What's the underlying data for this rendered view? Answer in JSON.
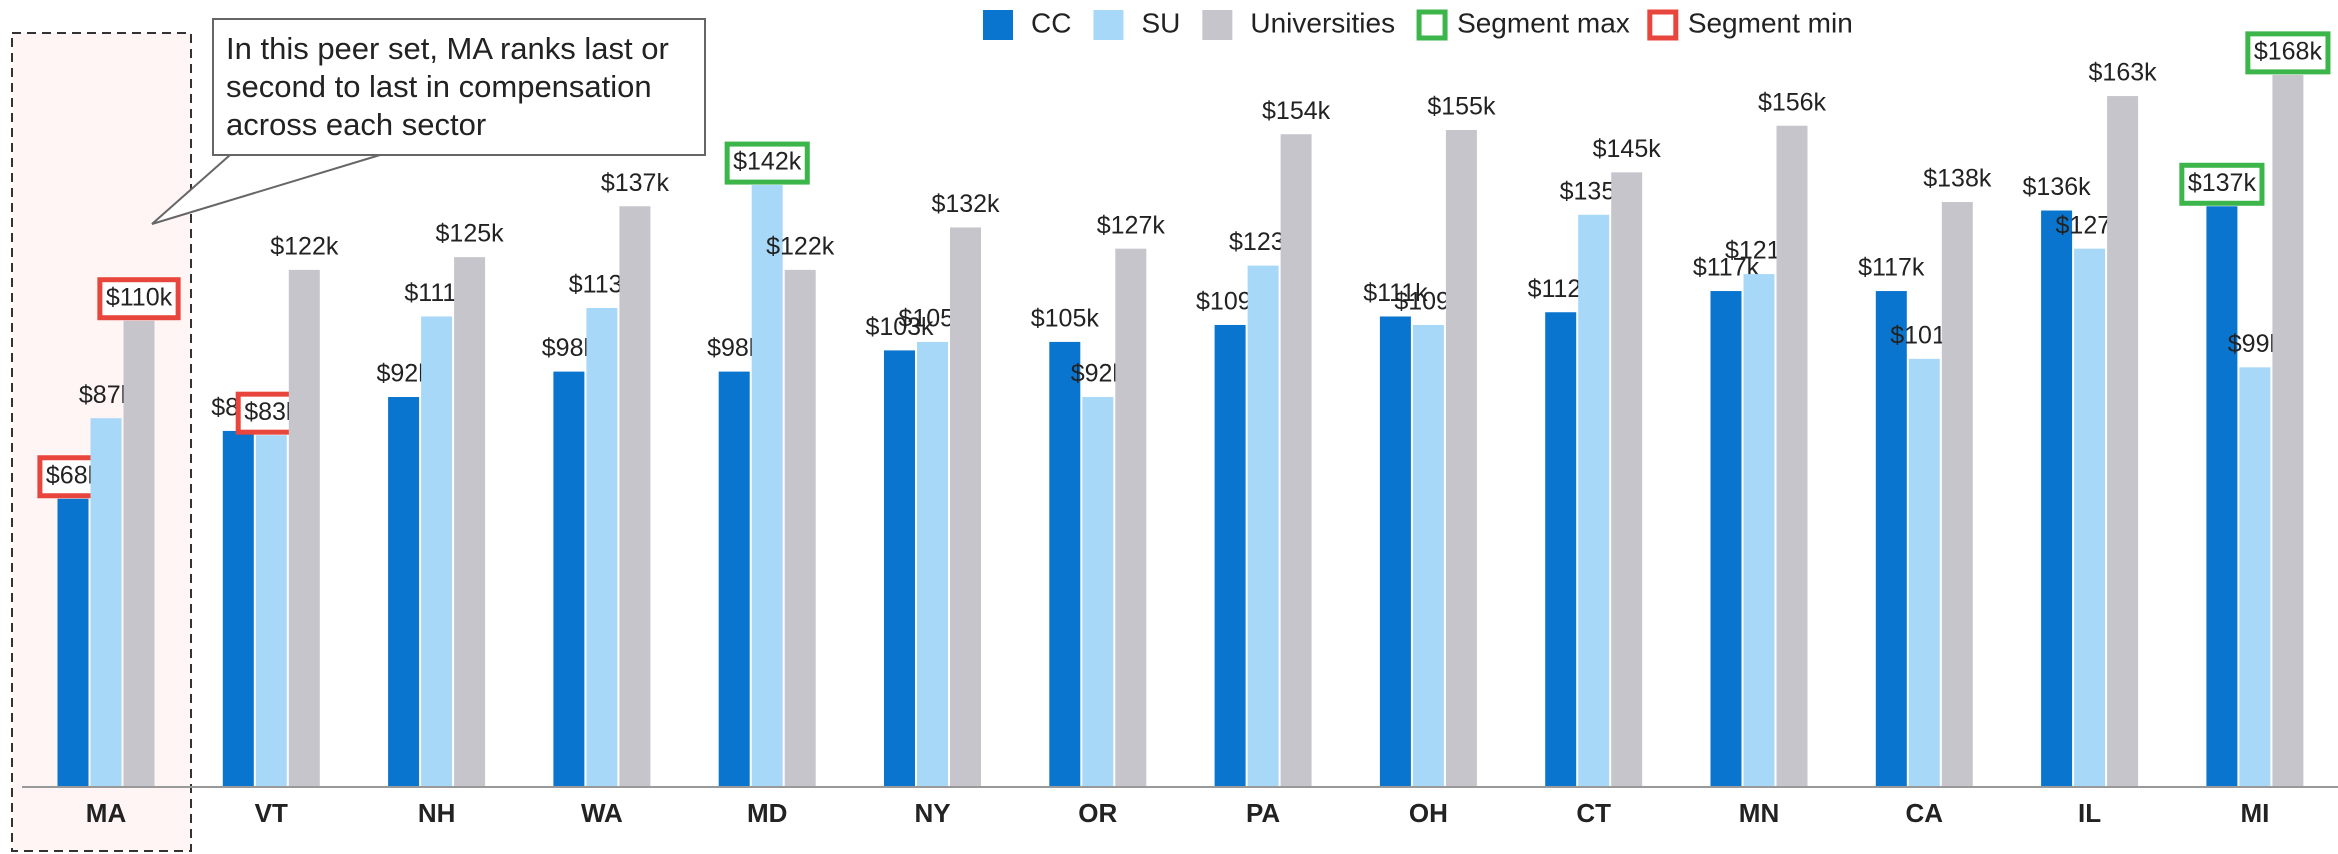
{
  "chart_data": {
    "type": "bar",
    "categories": [
      "MA",
      "VT",
      "NH",
      "WA",
      "MD",
      "NY",
      "OR",
      "PA",
      "OH",
      "CT",
      "MN",
      "CA",
      "IL",
      "MI"
    ],
    "series": [
      {
        "name": "CC",
        "color": "#0a75cf",
        "values": [
          68,
          84,
          92,
          98,
          98,
          103,
          105,
          109,
          111,
          112,
          117,
          117,
          136,
          137
        ],
        "value_labels": [
          "$68k",
          "$84k",
          "$92k",
          "$98k",
          "$98k",
          "$103k",
          "$105k",
          "$109k",
          "$111k",
          "$112k",
          "$117k",
          "$117k",
          "$136k",
          "$137k"
        ],
        "max_index": 13,
        "min_index": 0
      },
      {
        "name": "SU",
        "color": "#a8d8f8",
        "values": [
          87,
          83,
          111,
          113,
          142,
          105,
          92,
          123,
          109,
          135,
          121,
          101,
          127,
          99
        ],
        "value_labels": [
          "$87k",
          "$83k",
          "$111k",
          "$113k",
          "$142k",
          "$105k",
          "$92k",
          "$123k",
          "$109k",
          "$135k",
          "$121k",
          "$101k",
          "$127k",
          "$99k"
        ],
        "max_index": 4,
        "min_index": 1
      },
      {
        "name": "Universities",
        "color": "#c6c5cc",
        "values": [
          110,
          122,
          125,
          137,
          122,
          132,
          127,
          154,
          155,
          145,
          156,
          138,
          163,
          168
        ],
        "value_labels": [
          "$110k",
          "$122k",
          "$125k",
          "$137k",
          "$122k",
          "$132k",
          "$127k",
          "$154k",
          "$155k",
          "$145k",
          "$156k",
          "$138k",
          "$163k",
          "$168k"
        ],
        "max_index": 13,
        "min_index": 0
      }
    ],
    "legend_markers": [
      {
        "name": "Segment max",
        "color": "#3cb54a"
      },
      {
        "name": "Segment min",
        "color": "#e8453c"
      }
    ],
    "annotation": [
      "In this peer set, MA ranks last or",
      "second to last in compensation",
      "across each sector"
    ],
    "highlight_category": 0,
    "ylim": [
      0,
      180
    ]
  }
}
